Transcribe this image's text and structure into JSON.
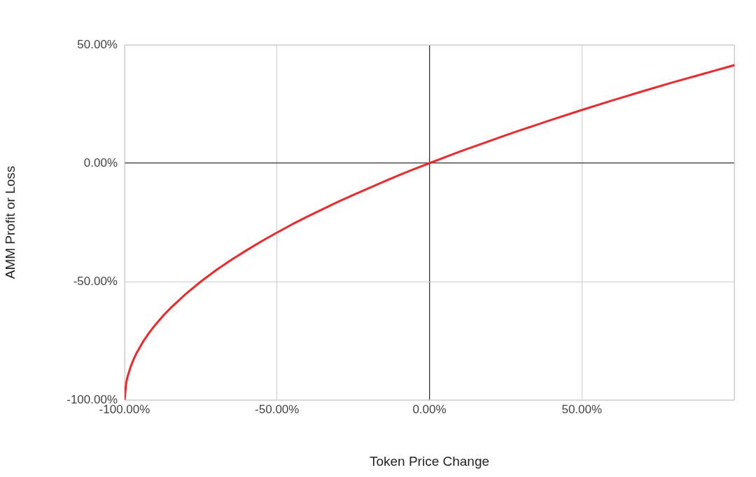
{
  "chart_data": {
    "type": "line",
    "xlabel": "Token Price Change",
    "ylabel": "AMM Profit or Loss",
    "x": [
      -100,
      -99.5,
      -99,
      -98,
      -97,
      -96,
      -94,
      -92,
      -90,
      -87,
      -85,
      -80,
      -75,
      -70,
      -65,
      -60,
      -55,
      -50,
      -45,
      -40,
      -35,
      -30,
      -25,
      -20,
      -15,
      -10,
      -5,
      0,
      5,
      10,
      15,
      20,
      25,
      30,
      40,
      50,
      60,
      70,
      80,
      90,
      100
    ],
    "series": [
      {
        "color": "#f4262a",
        "values": [
          -100,
          -92.9,
          -90,
          -85.9,
          -82.7,
          -80,
          -75.5,
          -71.7,
          -68.4,
          -63.9,
          -61.3,
          -55.3,
          -50,
          -45.2,
          -40.8,
          -36.8,
          -32.9,
          -29.3,
          -25.8,
          -22.5,
          -19.4,
          -16.3,
          -13.4,
          -10.6,
          -7.8,
          -5.1,
          -2.5,
          0,
          2.5,
          4.9,
          7.2,
          9.5,
          11.8,
          14,
          18.3,
          22.5,
          26.5,
          30.4,
          34.2,
          37.8,
          41.4
        ]
      }
    ],
    "xlim": [
      -100,
      100
    ],
    "ylim": [
      -100,
      50
    ],
    "xticks": [
      {
        "value": -100,
        "label": "-100.00%"
      },
      {
        "value": -50,
        "label": "-50.00%"
      },
      {
        "value": 0,
        "label": "0.00%"
      },
      {
        "value": 50,
        "label": "50.00%"
      },
      {
        "value": 100,
        "label": null
      }
    ],
    "yticks": [
      {
        "value": -100,
        "label": "-100.00%"
      },
      {
        "value": -50,
        "label": "-50.00%"
      },
      {
        "value": 0,
        "label": "0.00%"
      },
      {
        "value": 50,
        "label": "50.00%"
      }
    ],
    "grid": true,
    "marker": "none",
    "line_style": "solid"
  }
}
